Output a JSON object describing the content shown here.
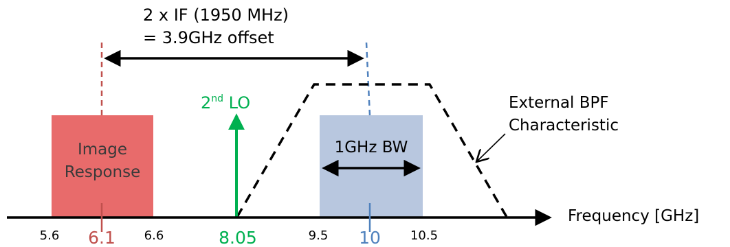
{
  "offset_label": {
    "line1": "2 x IF (1950 MHz)",
    "line2": "= 3.9GHz offset"
  },
  "image_block": {
    "line1": "Image",
    "line2": "Response"
  },
  "signal_block": {
    "label": "1GHz BW"
  },
  "lo": {
    "label_prefix": "2",
    "label_sup": "nd",
    "label_suffix": " LO"
  },
  "bpf_label": {
    "line1": "External BPF",
    "line2": "Characteristic"
  },
  "axis": {
    "label": "Frequency [GHz]"
  },
  "ticks": {
    "t56": "5.6",
    "t61": "6.1",
    "t66": "6.6",
    "t805": "8.05",
    "t95": "9.5",
    "t10": "10",
    "t105": "10.5"
  },
  "colors": {
    "image_fill": "#e86b6b",
    "image_line": "#c0504d",
    "signal_fill": "#b8c7df",
    "signal_line": "#4f81bd",
    "lo": "#00b050",
    "black": "#000000"
  }
}
